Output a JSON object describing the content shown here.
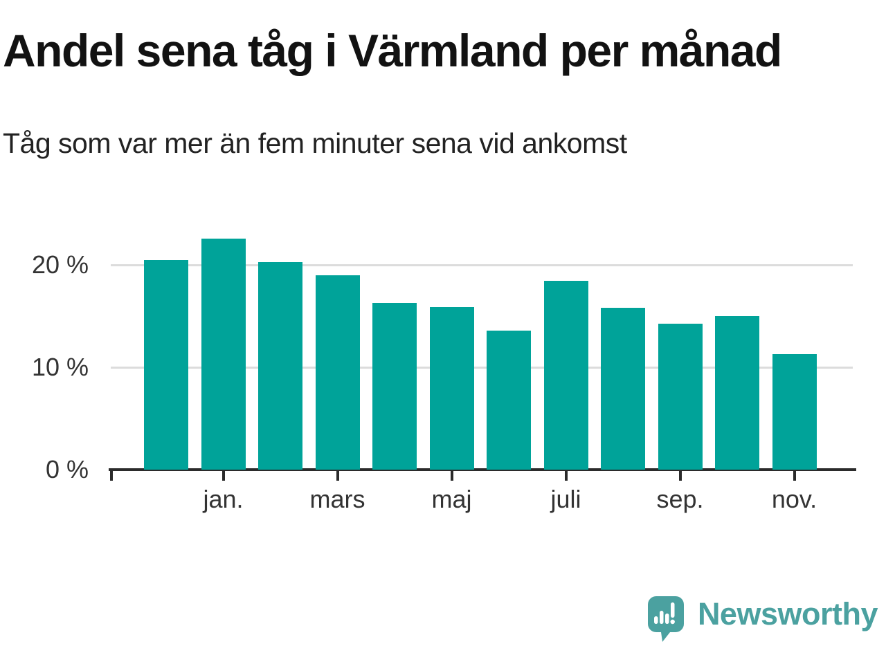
{
  "title": "Andel sena tåg i Värmland per månad",
  "subtitle": "Tåg som var mer än fem minuter sena vid ankomst",
  "chart_data": {
    "type": "bar",
    "title": "Andel sena tåg i Värmland per månad",
    "subtitle": "Tåg som var mer än fem minuter sena vid ankomst",
    "unit": "%",
    "ylim": [
      0,
      23.7
    ],
    "grid": true,
    "bar_color": "#00a399",
    "grid_color": "#dcdcdc",
    "axis_color": "#2b2b2b",
    "bars": [
      {
        "label": "",
        "value": 20.5
      },
      {
        "label": "jan.",
        "value": 22.6
      },
      {
        "label": "",
        "value": 20.3
      },
      {
        "label": "mars",
        "value": 19.0
      },
      {
        "label": "",
        "value": 16.3
      },
      {
        "label": "maj",
        "value": 15.9
      },
      {
        "label": "",
        "value": 13.6
      },
      {
        "label": "juli",
        "value": 18.5
      },
      {
        "label": "",
        "value": 15.8
      },
      {
        "label": "sep.",
        "value": 14.3
      },
      {
        "label": "",
        "value": 15.0
      },
      {
        "label": "nov.",
        "value": 11.3
      }
    ],
    "y_ticks": [
      {
        "label": "0 %",
        "value": 0
      },
      {
        "label": "10 %",
        "value": 10
      },
      {
        "label": "20 %",
        "value": 20
      }
    ]
  },
  "branding": {
    "logo_text": "Newsworthy",
    "logo_color": "#4ba1a0",
    "logo_icon": "speech-bubble-bar-chart-icon"
  }
}
